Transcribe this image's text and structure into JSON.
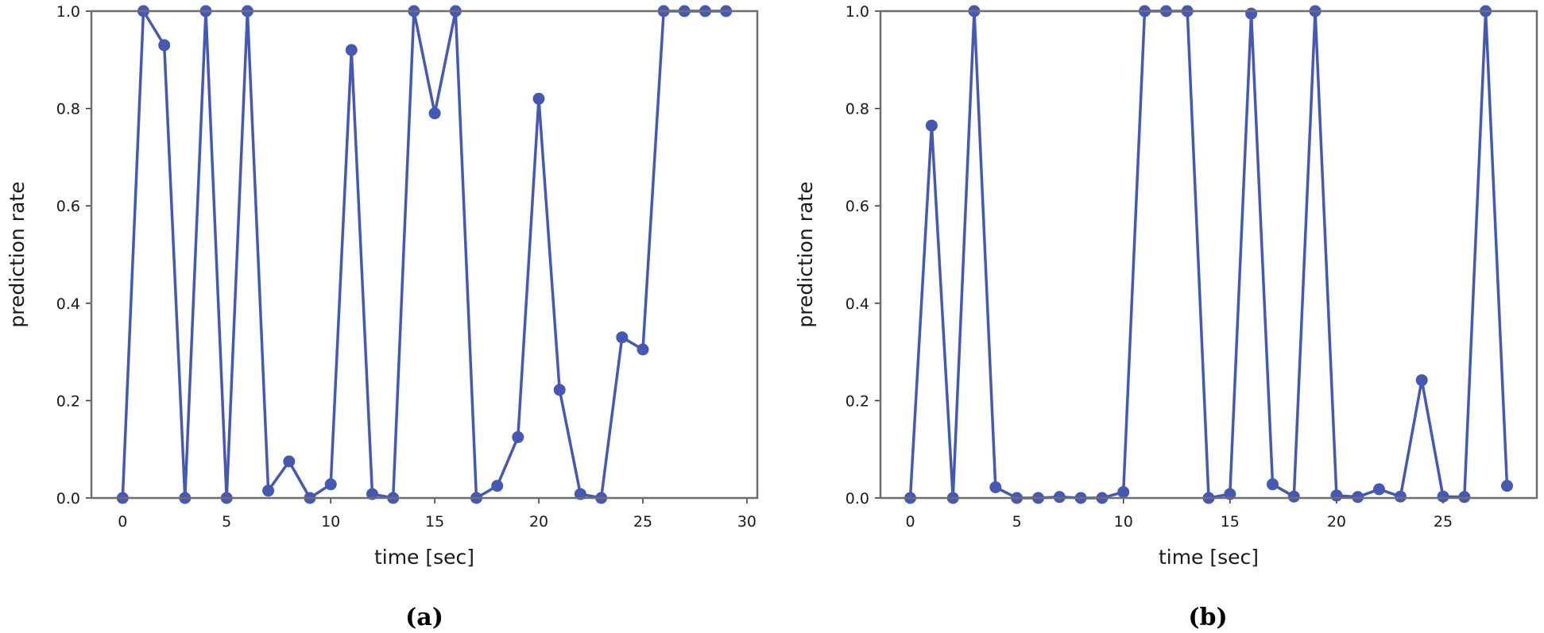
{
  "colors": {
    "series": "#4558b3"
  },
  "chart_data": [
    {
      "type": "line",
      "panel_label": "(a)",
      "xlabel": "time [sec]",
      "ylabel": "prediction rate",
      "xlim": [
        -1.5,
        30.5
      ],
      "ylim": [
        0.0,
        1.0
      ],
      "xticks": [
        0,
        5,
        10,
        15,
        20,
        25,
        30
      ],
      "yticks": [
        0.0,
        0.2,
        0.4,
        0.6,
        0.8,
        1.0
      ],
      "xtick_labels": [
        "0",
        "5",
        "10",
        "15",
        "20",
        "25",
        "30"
      ],
      "ytick_labels": [
        "0.0",
        "0.2",
        "0.4",
        "0.6",
        "0.8",
        "1.0"
      ],
      "grid": false,
      "series": [
        {
          "x": [
            0,
            1,
            2,
            3,
            4,
            5,
            6,
            7,
            8,
            9,
            10,
            11,
            12,
            13,
            14,
            15,
            16,
            17,
            18,
            19,
            20,
            21,
            22,
            23,
            24,
            25,
            26,
            27,
            28,
            29
          ],
          "values": [
            0.0,
            1.0,
            0.93,
            0.0,
            1.0,
            0.0,
            1.0,
            0.015,
            0.075,
            0.0,
            0.028,
            0.92,
            0.008,
            0.0,
            1.0,
            0.79,
            1.0,
            0.0,
            0.025,
            0.125,
            0.82,
            0.222,
            0.008,
            0.0,
            0.33,
            0.305,
            1.0,
            1.0,
            1.0,
            1.0
          ]
        }
      ]
    },
    {
      "type": "line",
      "panel_label": "(b)",
      "xlabel": "time [sec]",
      "ylabel": "prediction rate",
      "xlim": [
        -1.4,
        29.4
      ],
      "ylim": [
        0.0,
        1.0
      ],
      "xticks": [
        0,
        5,
        10,
        15,
        20,
        25
      ],
      "yticks": [
        0.0,
        0.2,
        0.4,
        0.6,
        0.8,
        1.0
      ],
      "xtick_labels": [
        "0",
        "5",
        "10",
        "15",
        "20",
        "25"
      ],
      "ytick_labels": [
        "0.0",
        "0.2",
        "0.4",
        "0.6",
        "0.8",
        "1.0"
      ],
      "grid": false,
      "series": [
        {
          "x": [
            0,
            1,
            2,
            3,
            4,
            5,
            6,
            7,
            8,
            9,
            10,
            11,
            12,
            13,
            14,
            15,
            16,
            17,
            18,
            19,
            20,
            21,
            22,
            23,
            24,
            25,
            26,
            27,
            28
          ],
          "values": [
            0.0,
            0.765,
            0.0,
            1.0,
            0.022,
            0.0,
            0.0,
            0.002,
            0.0,
            0.0,
            0.012,
            1.0,
            1.0,
            1.0,
            0.0,
            0.008,
            0.995,
            0.028,
            0.003,
            1.0,
            0.005,
            0.002,
            0.018,
            0.003,
            0.242,
            0.003,
            0.002,
            1.0,
            0.025
          ]
        }
      ]
    }
  ]
}
